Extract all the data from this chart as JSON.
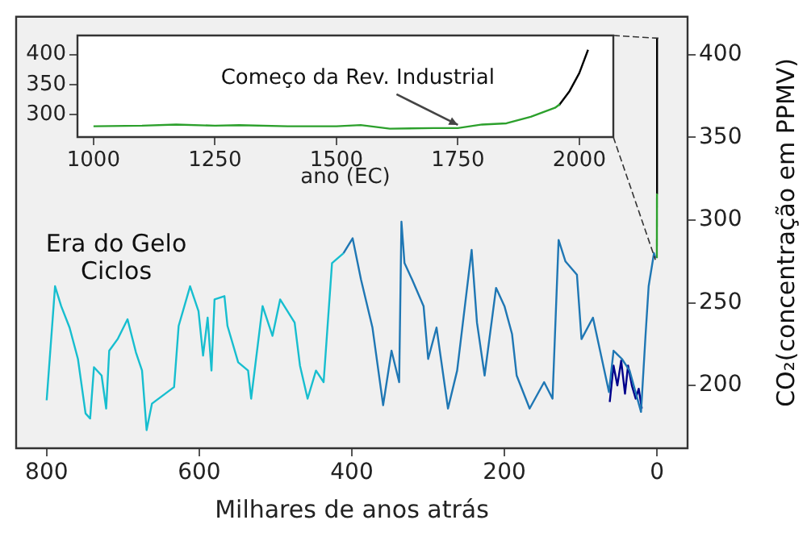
{
  "chart_data": [
    {
      "type": "line",
      "xlabel": "Milhares de anos atrás",
      "ylabel": "CO₂(concentração em PPMV)",
      "annotations": [
        "Era do Gelo\nCiclos"
      ],
      "xlim": [
        840,
        -40
      ],
      "xticks": [
        800,
        600,
        400,
        200,
        0
      ],
      "ylim": [
        162,
        423
      ],
      "yticks": [
        200,
        250,
        300,
        350,
        400
      ],
      "series": [
        {
          "color": "#17becf",
          "x": [
            800,
            789,
            781,
            770,
            759,
            749,
            743,
            738,
            728,
            722,
            718,
            707,
            694,
            683,
            675,
            669,
            662,
            633,
            627,
            612,
            601,
            595,
            589,
            584,
            580,
            567,
            563,
            549,
            536,
            532,
            517,
            504,
            494,
            475,
            468,
            458,
            447,
            437,
            426,
            411
          ],
          "values": [
            191,
            260,
            248,
            235,
            216,
            183,
            180,
            211,
            206,
            186,
            221,
            228,
            240,
            220,
            209,
            173,
            189,
            199,
            236,
            260,
            245,
            218,
            241,
            209,
            252,
            254,
            236,
            214,
            209,
            192,
            248,
            230,
            252,
            238,
            212,
            192,
            209,
            202,
            274,
            280
          ]
        },
        {
          "color": "#1f77b4",
          "x": [
            411,
            399,
            388,
            373,
            359,
            348,
            338,
            335,
            331,
            321,
            306,
            300,
            289,
            274,
            262,
            243,
            236,
            226,
            211,
            200,
            190,
            184,
            167,
            148,
            137,
            129,
            120,
            105,
            99,
            84,
            63,
            57,
            46,
            36,
            21,
            15,
            11,
            4,
            2
          ],
          "values": [
            280,
            289,
            264,
            235,
            188,
            221,
            202,
            299,
            274,
            264,
            248,
            216,
            235,
            186,
            209,
            282,
            238,
            206,
            259,
            248,
            231,
            206,
            186,
            202,
            192,
            288,
            275,
            267,
            228,
            241,
            196,
            221,
            216,
            209,
            184,
            231,
            260,
            280,
            277
          ]
        },
        {
          "color": "#00008b",
          "x": [
            62,
            57,
            52,
            47,
            42,
            38,
            33,
            28,
            24,
            20
          ],
          "values": [
            190,
            212,
            200,
            215,
            195,
            212,
            200,
            192,
            198,
            186
          ]
        },
        {
          "color": "#2ca02c",
          "x": [
            0.27,
            0.06
          ],
          "values": [
            277,
            316
          ]
        },
        {
          "color": "#000000",
          "x": [
            0.06,
            0
          ],
          "values": [
            316,
            410
          ]
        }
      ]
    },
    {
      "type": "line",
      "xlabel": "ano (EC)",
      "annotations": [
        {
          "text": "Começo da Rev. Industrial",
          "x": 1750,
          "y": 277
        }
      ],
      "xlim": [
        967,
        2070
      ],
      "xticks": [
        1000,
        1250,
        1500,
        1750,
        2000
      ],
      "ylim": [
        262,
        432
      ],
      "yticks": [
        300,
        350,
        400
      ],
      "series": [
        {
          "color": "#2ca02c",
          "x": [
            1000,
            1100,
            1170,
            1250,
            1300,
            1400,
            1500,
            1550,
            1610,
            1700,
            1750,
            1800,
            1850,
            1900,
            1950,
            1960
          ],
          "values": [
            280,
            281,
            283,
            281,
            282,
            280,
            280,
            282,
            276,
            277,
            277,
            283,
            285,
            296,
            311,
            317
          ]
        },
        {
          "color": "#000000",
          "x": [
            1958,
            1980,
            2000,
            2018
          ],
          "values": [
            315,
            339,
            369,
            408
          ]
        }
      ]
    }
  ]
}
